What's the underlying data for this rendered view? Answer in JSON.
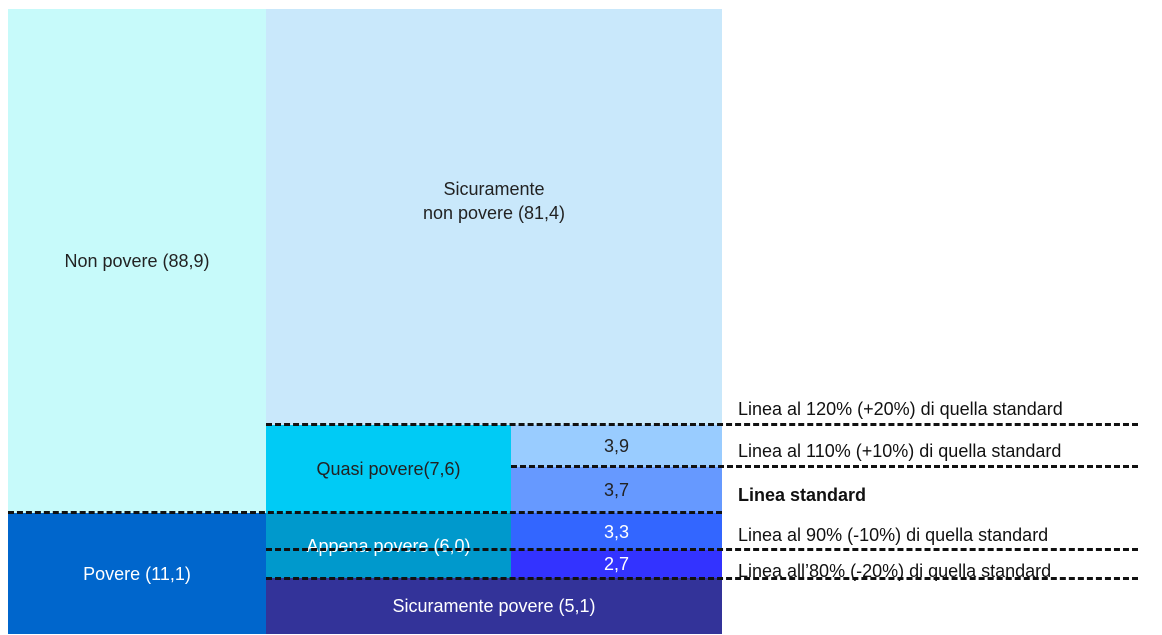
{
  "colors": {
    "non_povere": "#c7fafa",
    "sicuramente_non_povere": "#c9e8fb",
    "quasi_povere": "#00cbf5",
    "quasi_upper": "#99ccff",
    "quasi_lower": "#6699ff",
    "povere": "#0066cc",
    "appena_povere": "#0099cc",
    "appena_upper": "#3366ff",
    "appena_lower": "#3333ff",
    "sicuramente_povere": "#333399"
  },
  "blocks": {
    "non_povere": "Non povere (88,9)",
    "sicuramente_non_povere": "Sicuramente\nnon povere (81,4)",
    "quasi_povere": "Quasi povere(7,6)",
    "quasi_upper_value": "3,9",
    "quasi_lower_value": "3,7",
    "povere": "Povere (11,1)",
    "appena_povere": "Appena povere (6,0)",
    "appena_upper_value": "3,3",
    "appena_lower_value": "2,7",
    "sicuramente_povere": "Sicuramente povere (5,1)"
  },
  "lines": {
    "l120": "Linea al 120% (+20%) di quella standard",
    "l110": "Linea al 110% (+10%) di quella standard",
    "standard": "Linea standard",
    "l90": "Linea al 90% (-10%) di quella  standard",
    "l80": "Linea all’80% (-20%) di quella standard"
  }
}
